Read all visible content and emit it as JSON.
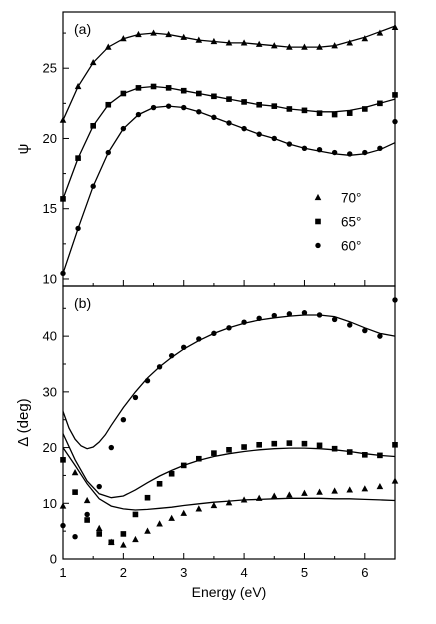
{
  "chart_data": [
    {
      "type": "scatter",
      "panel_label": "(a)",
      "ylabel": "ψ",
      "xlim": [
        1,
        6.5
      ],
      "ylim": [
        9.5,
        29
      ],
      "yticks": [
        "10",
        "15",
        "20",
        "25"
      ],
      "legend": {
        "placement": "lower-right",
        "entries": [
          {
            "label": "70°",
            "marker": "triangle"
          },
          {
            "label": "65°",
            "marker": "square"
          },
          {
            "label": "60°",
            "marker": "circle"
          }
        ]
      },
      "series": [
        {
          "marker": "triangle",
          "style": "markers",
          "x": [
            1.0,
            1.25,
            1.5,
            1.75,
            2.0,
            2.25,
            2.5,
            2.75,
            3.0,
            3.25,
            3.5,
            3.75,
            4.0,
            4.25,
            4.5,
            4.75,
            5.0,
            5.25,
            5.5,
            5.75,
            6.0,
            6.25,
            6.5
          ],
          "y": [
            21.3,
            23.7,
            25.4,
            26.5,
            27.1,
            27.4,
            27.5,
            27.4,
            27.2,
            27.0,
            26.9,
            26.8,
            26.8,
            26.7,
            26.6,
            26.5,
            26.5,
            26.5,
            26.6,
            26.8,
            27.1,
            27.5,
            27.9
          ]
        },
        {
          "marker": "square",
          "style": "markers",
          "x": [
            1.0,
            1.25,
            1.5,
            1.75,
            2.0,
            2.25,
            2.5,
            2.75,
            3.0,
            3.25,
            3.5,
            3.75,
            4.0,
            4.25,
            4.5,
            4.75,
            5.0,
            5.25,
            5.5,
            5.75,
            6.0,
            6.25,
            6.5
          ],
          "y": [
            15.7,
            18.6,
            20.9,
            22.4,
            23.2,
            23.6,
            23.7,
            23.6,
            23.4,
            23.2,
            23.0,
            22.8,
            22.6,
            22.4,
            22.3,
            22.1,
            22.0,
            21.8,
            21.7,
            21.8,
            22.1,
            22.5,
            23.1
          ]
        },
        {
          "marker": "circle",
          "style": "markers",
          "x": [
            1.0,
            1.25,
            1.5,
            1.75,
            2.0,
            2.25,
            2.5,
            2.75,
            3.0,
            3.25,
            3.5,
            3.75,
            4.0,
            4.25,
            4.5,
            4.75,
            5.0,
            5.25,
            5.5,
            5.75,
            6.0,
            6.25,
            6.5
          ],
          "y": [
            10.4,
            13.6,
            16.6,
            19.0,
            20.7,
            21.7,
            22.2,
            22.3,
            22.2,
            21.9,
            21.5,
            21.1,
            20.7,
            20.3,
            20.0,
            19.6,
            19.3,
            19.2,
            19.0,
            18.9,
            19.0,
            19.3,
            21.2
          ]
        },
        {
          "style": "line",
          "x": [
            1.0,
            1.25,
            1.5,
            1.75,
            2.0,
            2.25,
            2.5,
            2.75,
            3.0,
            3.25,
            3.5,
            3.75,
            4.0,
            4.25,
            4.5,
            4.75,
            5.0,
            5.25,
            5.5,
            5.75,
            6.0,
            6.25,
            6.5
          ],
          "y": [
            21.3,
            23.7,
            25.4,
            26.5,
            27.1,
            27.4,
            27.5,
            27.4,
            27.2,
            27.0,
            26.9,
            26.8,
            26.8,
            26.7,
            26.6,
            26.5,
            26.5,
            26.5,
            26.6,
            26.9,
            27.2,
            27.6,
            28.0
          ]
        },
        {
          "style": "line",
          "x": [
            1.0,
            1.25,
            1.5,
            1.75,
            2.0,
            2.25,
            2.5,
            2.75,
            3.0,
            3.25,
            3.5,
            3.75,
            4.0,
            4.25,
            4.5,
            4.75,
            5.0,
            5.25,
            5.5,
            5.75,
            6.0,
            6.25,
            6.5
          ],
          "y": [
            15.7,
            18.6,
            20.9,
            22.4,
            23.2,
            23.6,
            23.7,
            23.6,
            23.4,
            23.2,
            23.0,
            22.8,
            22.6,
            22.4,
            22.3,
            22.1,
            22.0,
            21.9,
            21.9,
            22.0,
            22.2,
            22.5,
            22.8
          ]
        },
        {
          "style": "line",
          "x": [
            1.0,
            1.25,
            1.5,
            1.75,
            2.0,
            2.25,
            2.5,
            2.75,
            3.0,
            3.25,
            3.5,
            3.75,
            4.0,
            4.25,
            4.5,
            4.75,
            5.0,
            5.25,
            5.5,
            5.75,
            6.0,
            6.25,
            6.5
          ],
          "y": [
            10.4,
            13.6,
            16.6,
            19.0,
            20.7,
            21.7,
            22.2,
            22.3,
            22.2,
            21.9,
            21.5,
            21.1,
            20.7,
            20.3,
            20.0,
            19.6,
            19.3,
            19.1,
            18.9,
            18.8,
            18.9,
            19.2,
            19.7
          ]
        }
      ]
    },
    {
      "type": "scatter",
      "panel_label": "(b)",
      "xlabel": "Energy (eV)",
      "ylabel": "Δ (deg)",
      "xlim": [
        1,
        6.5
      ],
      "ylim": [
        0,
        49
      ],
      "xticks": [
        "1",
        "2",
        "3",
        "4",
        "5",
        "6"
      ],
      "yticks": [
        "0",
        "10",
        "20",
        "30",
        "40"
      ],
      "series": [
        {
          "marker": "circle",
          "style": "markers",
          "x": [
            1.0,
            1.2,
            1.4,
            1.6,
            1.8,
            2.0,
            2.2,
            2.4,
            2.6,
            2.8,
            3.0,
            3.25,
            3.5,
            3.75,
            4.0,
            4.25,
            4.5,
            4.75,
            5.0,
            5.25,
            5.5,
            5.75,
            6.0,
            6.25,
            6.5
          ],
          "y": [
            6.0,
            4.0,
            8.0,
            13.0,
            20.0,
            25.0,
            29.0,
            32.0,
            34.5,
            36.5,
            38.0,
            39.5,
            40.5,
            41.5,
            42.5,
            43.2,
            43.7,
            44.0,
            44.2,
            43.8,
            43.0,
            42.0,
            41.0,
            40.0,
            46.5
          ]
        },
        {
          "marker": "square",
          "style": "markers",
          "x": [
            1.0,
            1.2,
            1.4,
            1.6,
            1.8,
            2.0,
            2.2,
            2.4,
            2.6,
            2.8,
            3.0,
            3.25,
            3.5,
            3.75,
            4.0,
            4.25,
            4.5,
            4.75,
            5.0,
            5.25,
            5.5,
            5.75,
            6.0,
            6.25,
            6.5
          ],
          "y": [
            17.8,
            12.0,
            7.0,
            4.5,
            3.0,
            4.5,
            8.0,
            11.0,
            13.5,
            15.3,
            16.8,
            18.0,
            19.0,
            19.6,
            20.1,
            20.5,
            20.7,
            20.8,
            20.7,
            20.4,
            19.8,
            19.2,
            18.7,
            18.6,
            20.5
          ]
        },
        {
          "marker": "triangle",
          "style": "markers",
          "x": [
            1.0,
            1.2,
            1.4,
            1.6,
            1.8,
            2.0,
            2.2,
            2.4,
            2.6,
            2.8,
            3.0,
            3.25,
            3.5,
            3.75,
            4.0,
            4.25,
            4.5,
            4.75,
            5.0,
            5.25,
            5.5,
            5.75,
            6.0,
            6.25,
            6.5
          ],
          "y": [
            9.5,
            15.5,
            10.5,
            5.5,
            3.0,
            2.5,
            3.5,
            5.0,
            6.3,
            7.3,
            8.2,
            9.0,
            9.6,
            10.1,
            10.6,
            10.9,
            11.3,
            11.5,
            11.8,
            12.0,
            12.2,
            12.4,
            12.6,
            13.0,
            14.0
          ]
        },
        {
          "style": "line",
          "x": [
            1.0,
            1.1,
            1.2,
            1.3,
            1.4,
            1.5,
            1.6,
            1.7,
            1.8,
            2.0,
            2.2,
            2.4,
            2.6,
            2.8,
            3.0,
            3.25,
            3.5,
            3.75,
            4.0,
            4.25,
            4.5,
            4.75,
            5.0,
            5.25,
            5.5,
            5.75,
            6.0,
            6.25,
            6.5
          ],
          "y": [
            26.5,
            23.5,
            21.5,
            20.3,
            19.8,
            20.1,
            21.0,
            22.3,
            24.0,
            27.2,
            30.0,
            32.5,
            34.5,
            36.2,
            37.7,
            39.2,
            40.5,
            41.5,
            42.3,
            42.9,
            43.3,
            43.6,
            43.8,
            43.8,
            43.5,
            42.6,
            41.5,
            40.5,
            40.0
          ]
        },
        {
          "style": "line",
          "x": [
            1.0,
            1.2,
            1.4,
            1.6,
            1.8,
            2.0,
            2.2,
            2.4,
            2.6,
            2.8,
            3.0,
            3.25,
            3.5,
            3.75,
            4.0,
            4.25,
            4.5,
            4.75,
            5.0,
            5.25,
            5.5,
            5.75,
            6.0,
            6.25,
            6.5
          ],
          "y": [
            22.5,
            17.8,
            14.0,
            11.7,
            11.0,
            11.3,
            12.4,
            13.7,
            14.9,
            15.9,
            16.8,
            17.7,
            18.4,
            18.9,
            19.3,
            19.6,
            19.8,
            19.9,
            19.9,
            19.8,
            19.6,
            19.3,
            18.9,
            18.6,
            18.4
          ]
        },
        {
          "style": "line",
          "x": [
            1.0,
            1.2,
            1.4,
            1.6,
            1.8,
            2.0,
            2.2,
            2.4,
            2.6,
            2.8,
            3.0,
            3.25,
            3.5,
            3.75,
            4.0,
            4.25,
            4.5,
            4.75,
            5.0,
            5.25,
            5.5,
            5.75,
            6.0,
            6.25,
            6.5
          ],
          "y": [
            20.0,
            16.8,
            13.5,
            10.8,
            9.5,
            9.0,
            8.8,
            8.9,
            9.1,
            9.3,
            9.6,
            9.9,
            10.2,
            10.4,
            10.6,
            10.7,
            10.8,
            10.9,
            10.9,
            10.9,
            10.8,
            10.8,
            10.7,
            10.6,
            10.5
          ]
        }
      ]
    }
  ]
}
